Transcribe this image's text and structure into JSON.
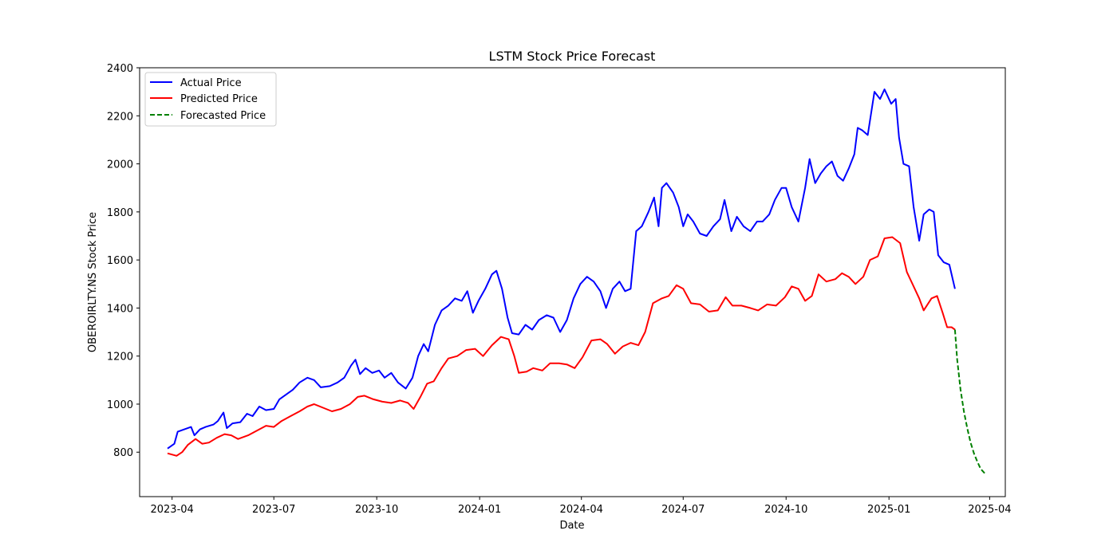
{
  "chart_data": {
    "type": "line",
    "title": "LSTM Stock Price Forecast",
    "xlabel": "Date",
    "ylabel": "OBEROIRLTY.NS Stock Price",
    "ylim": [
      615,
      2400
    ],
    "xlim": [
      "2023-03-03",
      "2025-04-15"
    ],
    "x_ticks": [
      "2023-04-01",
      "2023-07-01",
      "2023-10-01",
      "2024-01-01",
      "2024-04-01",
      "2024-07-01",
      "2024-10-01",
      "2025-01-01",
      "2025-04-01"
    ],
    "x_tick_labels": [
      "2023-04",
      "2023-07",
      "2023-10",
      "2024-01",
      "2024-04",
      "2024-07",
      "2024-10",
      "2025-01",
      "2025-04"
    ],
    "y_ticks": [
      800,
      1000,
      1200,
      1400,
      1600,
      1800,
      2000,
      2200,
      2400
    ],
    "y_tick_labels": [
      "800",
      "1000",
      "1200",
      "1400",
      "1600",
      "1800",
      "2000",
      "2200",
      "2400"
    ],
    "grid": false,
    "legend_position": "top-left",
    "series": [
      {
        "name": "Actual Price",
        "color": "#0000ff",
        "style": "solid",
        "points": [
          [
            "2023-03-28",
            815
          ],
          [
            "2023-04-03",
            835
          ],
          [
            "2023-04-06",
            885
          ],
          [
            "2023-04-12",
            895
          ],
          [
            "2023-04-18",
            905
          ],
          [
            "2023-04-21",
            870
          ],
          [
            "2023-04-26",
            895
          ],
          [
            "2023-05-01",
            905
          ],
          [
            "2023-05-08",
            915
          ],
          [
            "2023-05-12",
            930
          ],
          [
            "2023-05-17",
            965
          ],
          [
            "2023-05-20",
            900
          ],
          [
            "2023-05-25",
            920
          ],
          [
            "2023-06-01",
            925
          ],
          [
            "2023-06-07",
            960
          ],
          [
            "2023-06-12",
            950
          ],
          [
            "2023-06-18",
            990
          ],
          [
            "2023-06-24",
            975
          ],
          [
            "2023-07-01",
            980
          ],
          [
            "2023-07-06",
            1020
          ],
          [
            "2023-07-12",
            1040
          ],
          [
            "2023-07-18",
            1060
          ],
          [
            "2023-07-24",
            1090
          ],
          [
            "2023-07-31",
            1110
          ],
          [
            "2023-08-06",
            1100
          ],
          [
            "2023-08-12",
            1070
          ],
          [
            "2023-08-20",
            1075
          ],
          [
            "2023-08-27",
            1090
          ],
          [
            "2023-09-02",
            1110
          ],
          [
            "2023-09-08",
            1160
          ],
          [
            "2023-09-12",
            1185
          ],
          [
            "2023-09-16",
            1125
          ],
          [
            "2023-09-21",
            1150
          ],
          [
            "2023-09-27",
            1130
          ],
          [
            "2023-10-03",
            1140
          ],
          [
            "2023-10-08",
            1110
          ],
          [
            "2023-10-14",
            1130
          ],
          [
            "2023-10-20",
            1090
          ],
          [
            "2023-10-27",
            1065
          ],
          [
            "2023-11-02",
            1110
          ],
          [
            "2023-11-07",
            1200
          ],
          [
            "2023-11-12",
            1250
          ],
          [
            "2023-11-16",
            1220
          ],
          [
            "2023-11-22",
            1330
          ],
          [
            "2023-11-28",
            1390
          ],
          [
            "2023-12-04",
            1410
          ],
          [
            "2023-12-10",
            1440
          ],
          [
            "2023-12-16",
            1430
          ],
          [
            "2023-12-21",
            1470
          ],
          [
            "2023-12-26",
            1380
          ],
          [
            "2023-12-31",
            1430
          ],
          [
            "2024-01-06",
            1480
          ],
          [
            "2024-01-12",
            1540
          ],
          [
            "2024-01-16",
            1555
          ],
          [
            "2024-01-21",
            1480
          ],
          [
            "2024-01-26",
            1360
          ],
          [
            "2024-01-30",
            1295
          ],
          [
            "2024-02-05",
            1290
          ],
          [
            "2024-02-11",
            1330
          ],
          [
            "2024-02-17",
            1310
          ],
          [
            "2024-02-23",
            1350
          ],
          [
            "2024-03-01",
            1370
          ],
          [
            "2024-03-07",
            1360
          ],
          [
            "2024-03-13",
            1300
          ],
          [
            "2024-03-19",
            1350
          ],
          [
            "2024-03-25",
            1440
          ],
          [
            "2024-03-31",
            1500
          ],
          [
            "2024-04-06",
            1530
          ],
          [
            "2024-04-12",
            1510
          ],
          [
            "2024-04-18",
            1470
          ],
          [
            "2024-04-23",
            1400
          ],
          [
            "2024-04-29",
            1480
          ],
          [
            "2024-05-05",
            1510
          ],
          [
            "2024-05-10",
            1470
          ],
          [
            "2024-05-15",
            1480
          ],
          [
            "2024-05-20",
            1720
          ],
          [
            "2024-05-25",
            1740
          ],
          [
            "2024-05-31",
            1800
          ],
          [
            "2024-06-05",
            1860
          ],
          [
            "2024-06-09",
            1740
          ],
          [
            "2024-06-12",
            1900
          ],
          [
            "2024-06-16",
            1920
          ],
          [
            "2024-06-22",
            1880
          ],
          [
            "2024-06-27",
            1820
          ],
          [
            "2024-07-01",
            1740
          ],
          [
            "2024-07-05",
            1790
          ],
          [
            "2024-07-10",
            1760
          ],
          [
            "2024-07-16",
            1710
          ],
          [
            "2024-07-22",
            1700
          ],
          [
            "2024-07-28",
            1740
          ],
          [
            "2024-08-03",
            1770
          ],
          [
            "2024-08-07",
            1850
          ],
          [
            "2024-08-13",
            1720
          ],
          [
            "2024-08-18",
            1780
          ],
          [
            "2024-08-24",
            1740
          ],
          [
            "2024-08-30",
            1720
          ],
          [
            "2024-09-05",
            1760
          ],
          [
            "2024-09-10",
            1760
          ],
          [
            "2024-09-16",
            1790
          ],
          [
            "2024-09-21",
            1850
          ],
          [
            "2024-09-27",
            1900
          ],
          [
            "2024-10-01",
            1900
          ],
          [
            "2024-10-06",
            1820
          ],
          [
            "2024-10-12",
            1760
          ],
          [
            "2024-10-18",
            1900
          ],
          [
            "2024-10-22",
            2020
          ],
          [
            "2024-10-27",
            1920
          ],
          [
            "2024-11-01",
            1960
          ],
          [
            "2024-11-06",
            1990
          ],
          [
            "2024-11-11",
            2010
          ],
          [
            "2024-11-16",
            1950
          ],
          [
            "2024-11-21",
            1930
          ],
          [
            "2024-11-26",
            1980
          ],
          [
            "2024-12-01",
            2040
          ],
          [
            "2024-12-04",
            2150
          ],
          [
            "2024-12-08",
            2140
          ],
          [
            "2024-12-13",
            2120
          ],
          [
            "2024-12-19",
            2300
          ],
          [
            "2024-12-24",
            2270
          ],
          [
            "2024-12-28",
            2310
          ],
          [
            "2025-01-03",
            2250
          ],
          [
            "2025-01-07",
            2270
          ],
          [
            "2025-01-10",
            2110
          ],
          [
            "2025-01-14",
            2000
          ],
          [
            "2025-01-19",
            1990
          ],
          [
            "2025-01-23",
            1820
          ],
          [
            "2025-01-28",
            1680
          ],
          [
            "2025-02-01",
            1790
          ],
          [
            "2025-02-06",
            1810
          ],
          [
            "2025-02-10",
            1800
          ],
          [
            "2025-02-14",
            1620
          ],
          [
            "2025-02-19",
            1590
          ],
          [
            "2025-02-24",
            1580
          ],
          [
            "2025-03-01",
            1480
          ]
        ]
      },
      {
        "name": "Predicted Price",
        "color": "#ff0000",
        "style": "solid",
        "points": [
          [
            "2023-03-28",
            795
          ],
          [
            "2023-04-05",
            785
          ],
          [
            "2023-04-10",
            800
          ],
          [
            "2023-04-15",
            830
          ],
          [
            "2023-04-22",
            855
          ],
          [
            "2023-04-28",
            835
          ],
          [
            "2023-05-04",
            840
          ],
          [
            "2023-05-11",
            860
          ],
          [
            "2023-05-18",
            875
          ],
          [
            "2023-05-24",
            870
          ],
          [
            "2023-05-30",
            855
          ],
          [
            "2023-06-08",
            870
          ],
          [
            "2023-06-16",
            890
          ],
          [
            "2023-06-24",
            910
          ],
          [
            "2023-07-01",
            905
          ],
          [
            "2023-07-08",
            930
          ],
          [
            "2023-07-16",
            950
          ],
          [
            "2023-07-24",
            970
          ],
          [
            "2023-07-31",
            990
          ],
          [
            "2023-08-06",
            1000
          ],
          [
            "2023-08-14",
            985
          ],
          [
            "2023-08-22",
            970
          ],
          [
            "2023-08-30",
            980
          ],
          [
            "2023-09-07",
            1000
          ],
          [
            "2023-09-14",
            1030
          ],
          [
            "2023-09-20",
            1035
          ],
          [
            "2023-09-28",
            1020
          ],
          [
            "2023-10-06",
            1010
          ],
          [
            "2023-10-14",
            1005
          ],
          [
            "2023-10-22",
            1015
          ],
          [
            "2023-10-29",
            1005
          ],
          [
            "2023-11-03",
            980
          ],
          [
            "2023-11-09",
            1030
          ],
          [
            "2023-11-15",
            1085
          ],
          [
            "2023-11-21",
            1095
          ],
          [
            "2023-11-28",
            1150
          ],
          [
            "2023-12-04",
            1190
          ],
          [
            "2023-12-12",
            1200
          ],
          [
            "2023-12-20",
            1225
          ],
          [
            "2023-12-28",
            1230
          ],
          [
            "2024-01-04",
            1200
          ],
          [
            "2024-01-12",
            1245
          ],
          [
            "2024-01-20",
            1280
          ],
          [
            "2024-01-27",
            1270
          ],
          [
            "2024-02-01",
            1200
          ],
          [
            "2024-02-05",
            1130
          ],
          [
            "2024-02-12",
            1135
          ],
          [
            "2024-02-18",
            1150
          ],
          [
            "2024-02-26",
            1140
          ],
          [
            "2024-03-04",
            1170
          ],
          [
            "2024-03-12",
            1170
          ],
          [
            "2024-03-19",
            1165
          ],
          [
            "2024-03-26",
            1150
          ],
          [
            "2024-04-02",
            1195
          ],
          [
            "2024-04-10",
            1265
          ],
          [
            "2024-04-18",
            1270
          ],
          [
            "2024-04-24",
            1250
          ],
          [
            "2024-05-01",
            1210
          ],
          [
            "2024-05-08",
            1240
          ],
          [
            "2024-05-15",
            1255
          ],
          [
            "2024-05-22",
            1245
          ],
          [
            "2024-05-28",
            1300
          ],
          [
            "2024-06-04",
            1420
          ],
          [
            "2024-06-12",
            1440
          ],
          [
            "2024-06-18",
            1450
          ],
          [
            "2024-06-25",
            1495
          ],
          [
            "2024-07-01",
            1480
          ],
          [
            "2024-07-08",
            1420
          ],
          [
            "2024-07-16",
            1415
          ],
          [
            "2024-07-24",
            1385
          ],
          [
            "2024-08-01",
            1390
          ],
          [
            "2024-08-08",
            1445
          ],
          [
            "2024-08-14",
            1410
          ],
          [
            "2024-08-22",
            1410
          ],
          [
            "2024-08-30",
            1400
          ],
          [
            "2024-09-06",
            1390
          ],
          [
            "2024-09-14",
            1415
          ],
          [
            "2024-09-22",
            1410
          ],
          [
            "2024-09-30",
            1445
          ],
          [
            "2024-10-06",
            1490
          ],
          [
            "2024-10-12",
            1480
          ],
          [
            "2024-10-18",
            1430
          ],
          [
            "2024-10-24",
            1450
          ],
          [
            "2024-10-30",
            1540
          ],
          [
            "2024-11-06",
            1510
          ],
          [
            "2024-11-14",
            1520
          ],
          [
            "2024-11-20",
            1545
          ],
          [
            "2024-11-26",
            1530
          ],
          [
            "2024-12-02",
            1500
          ],
          [
            "2024-12-09",
            1530
          ],
          [
            "2024-12-15",
            1600
          ],
          [
            "2024-12-22",
            1615
          ],
          [
            "2024-12-28",
            1690
          ],
          [
            "2025-01-04",
            1695
          ],
          [
            "2025-01-11",
            1670
          ],
          [
            "2025-01-17",
            1550
          ],
          [
            "2025-01-23",
            1490
          ],
          [
            "2025-01-28",
            1440
          ],
          [
            "2025-02-01",
            1390
          ],
          [
            "2025-02-08",
            1440
          ],
          [
            "2025-02-13",
            1450
          ],
          [
            "2025-02-18",
            1380
          ],
          [
            "2025-02-22",
            1320
          ],
          [
            "2025-02-26",
            1320
          ],
          [
            "2025-03-01",
            1310
          ]
        ]
      },
      {
        "name": "Forecasted Price",
        "color": "#008000",
        "style": "dashed",
        "points": [
          [
            "2025-03-01",
            1310
          ],
          [
            "2025-03-03",
            1185
          ],
          [
            "2025-03-06",
            1060
          ],
          [
            "2025-03-09",
            970
          ],
          [
            "2025-03-12",
            900
          ],
          [
            "2025-03-15",
            840
          ],
          [
            "2025-03-18",
            795
          ],
          [
            "2025-03-21",
            760
          ],
          [
            "2025-03-24",
            730
          ],
          [
            "2025-03-28",
            710
          ]
        ]
      }
    ]
  }
}
